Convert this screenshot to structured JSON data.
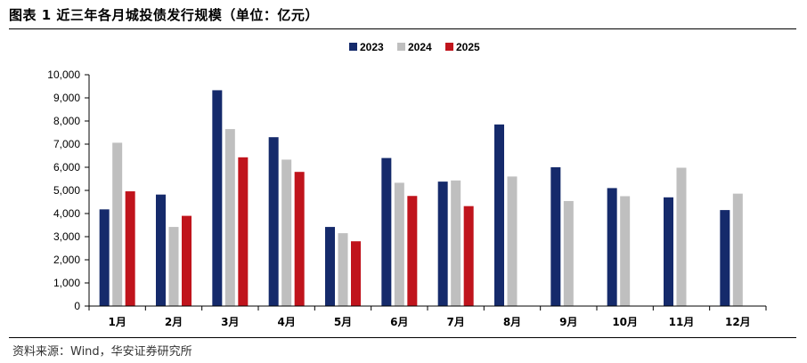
{
  "title": "图表 1 近三年各月城投债发行规模（单位：亿元）",
  "source": "资料来源：Wind，华安证券研究所",
  "chart_data": {
    "type": "bar",
    "categories": [
      "1月",
      "2月",
      "3月",
      "4月",
      "5月",
      "6月",
      "7月",
      "8月",
      "9月",
      "10月",
      "11月",
      "12月"
    ],
    "series": [
      {
        "name": "2023",
        "color": "#152a6b",
        "values": [
          4180,
          4820,
          9330,
          7300,
          3420,
          6400,
          5380,
          7850,
          6000,
          5100,
          4700,
          4150
        ]
      },
      {
        "name": "2024",
        "color": "#bfbfbf",
        "values": [
          7060,
          3420,
          7650,
          6330,
          3150,
          5330,
          5430,
          5600,
          4540,
          4750,
          5980,
          4860
        ]
      },
      {
        "name": "2025",
        "color": "#c0141c",
        "values": [
          4960,
          3900,
          6430,
          5800,
          2800,
          4760,
          4320,
          null,
          null,
          null,
          null,
          null
        ]
      }
    ],
    "ylim": [
      0,
      10000
    ],
    "yticks": [
      "0",
      "1,000",
      "2,000",
      "3,000",
      "4,000",
      "5,000",
      "6,000",
      "7,000",
      "8,000",
      "9,000",
      "10,000"
    ],
    "legend": "top",
    "grid": false
  }
}
